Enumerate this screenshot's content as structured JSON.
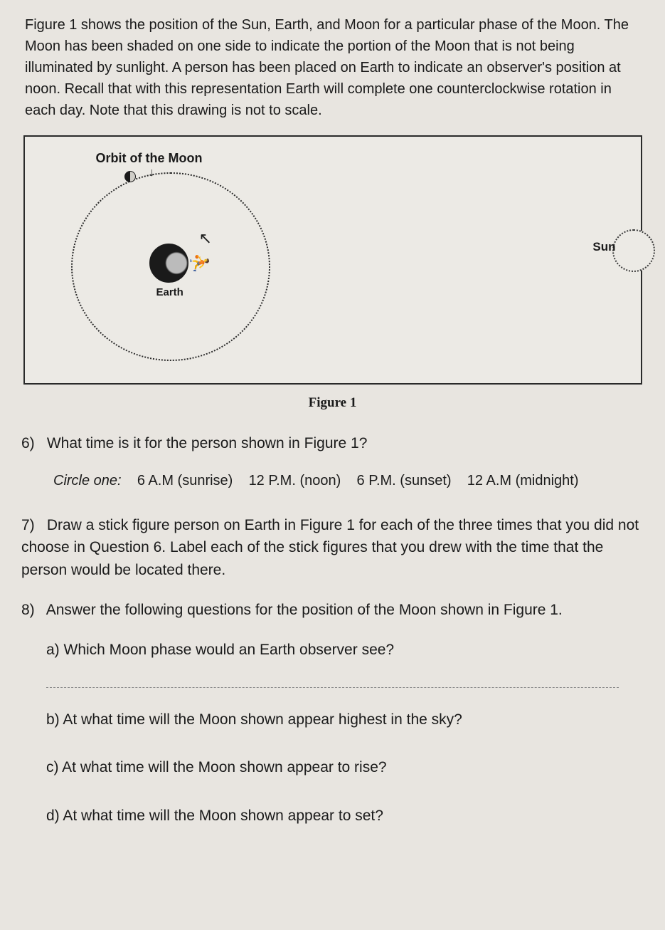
{
  "intro": "Figure 1 shows the position of the Sun, Earth, and Moon for a particular phase of the Moon. The Moon has been shaded on one side to indicate the portion of the Moon that is not being illuminated by sunlight. A person has been placed on Earth to indicate an observer's position at noon. Recall that with this representation Earth will complete one counterclockwise rotation in each day. Note that this drawing is not to scale.",
  "figure": {
    "orbit_label": "Orbit of the Moon",
    "earth_label": "Earth",
    "sun_label": "Sun",
    "caption": "Figure 1"
  },
  "q6": {
    "num": "6)",
    "text": "What time is it for the person shown in Figure 1?",
    "circle_label": "Circle one:",
    "opt1": "6 A.M (sunrise)",
    "opt2": "12 P.M. (noon)",
    "opt3": "6 P.M. (sunset)",
    "opt4": "12 A.M (midnight)"
  },
  "q7": {
    "num": "7)",
    "text": "Draw a stick figure person on Earth in Figure 1 for each of the three times that you did not choose in Question 6. Label each of the stick figures that you drew with the time that the person would be located there."
  },
  "q8": {
    "num": "8)",
    "text": "Answer the following questions for the position of the Moon shown in Figure 1.",
    "a": "a)  Which Moon phase would an Earth observer see?",
    "b": "b)  At what time will the Moon shown appear highest in the sky?",
    "c": "c)  At what time will the Moon shown appear to rise?",
    "d": "d)  At what time will the Moon shown appear to set?"
  }
}
